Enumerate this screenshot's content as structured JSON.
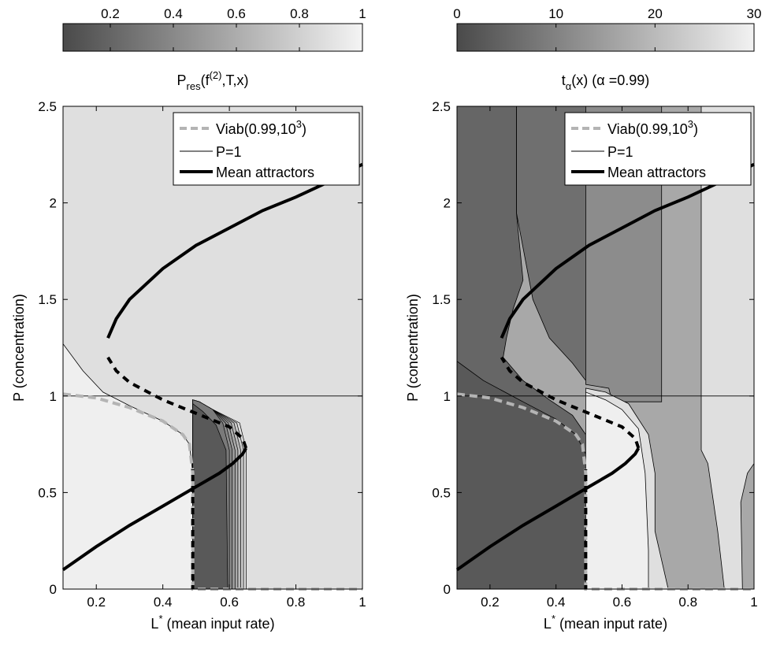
{
  "chart_data": [
    {
      "type": "contour",
      "colorbar": {
        "ticks": [
          "0.2",
          "0.4",
          "0.6",
          "0.8",
          "1"
        ],
        "range": [
          0.05,
          1.0
        ],
        "label_main": "P",
        "label_sub": "res",
        "label_mid": "(f",
        "label_sup": "(2)",
        "label_end": ",T,x)"
      },
      "xlabel_main": "L",
      "xlabel_sup": "*",
      "xlabel_end": " (mean input rate)",
      "ylabel": "P (concentration)",
      "xlim": [
        0.1,
        1.0
      ],
      "ylim": [
        0,
        2.5
      ],
      "xticks": [
        "0.2",
        "0.4",
        "0.6",
        "0.8",
        "1"
      ],
      "yticks": [
        "0",
        "0.5",
        "1",
        "1.5",
        "2",
        "2.5"
      ],
      "legend": {
        "position": "top-right",
        "viab_main": "Viab(0.99,10",
        "viab_sup": "3",
        "viab_end": ")",
        "p1": "P=1",
        "mean": "Mean attractors"
      },
      "regions": [
        {
          "name": "upper",
          "level": 0.9,
          "color": "#dfdfdf"
        },
        {
          "name": "lower-left",
          "level": 1.0,
          "color": "#efefef"
        },
        {
          "name": "lower-middle",
          "level": 0.1,
          "color": "#595959"
        },
        {
          "name": "lower-right",
          "level": 0.9,
          "color": "#dfdfdf"
        }
      ],
      "mean_attractors": {
        "lower": [
          [
            0.1,
            0.1
          ],
          [
            0.2,
            0.22
          ],
          [
            0.3,
            0.33
          ],
          [
            0.4,
            0.43
          ],
          [
            0.5,
            0.53
          ],
          [
            0.57,
            0.6
          ],
          [
            0.61,
            0.65
          ],
          [
            0.64,
            0.7
          ],
          [
            0.65,
            0.73
          ]
        ],
        "middle": [
          [
            0.65,
            0.73
          ],
          [
            0.64,
            0.78
          ],
          [
            0.6,
            0.84
          ],
          [
            0.5,
            0.91
          ],
          [
            0.4,
            0.98
          ],
          [
            0.3,
            1.07
          ],
          [
            0.26,
            1.13
          ],
          [
            0.235,
            1.2
          ]
        ],
        "upper": [
          [
            0.235,
            1.3
          ],
          [
            0.26,
            1.4
          ],
          [
            0.3,
            1.5
          ],
          [
            0.4,
            1.66
          ],
          [
            0.5,
            1.78
          ],
          [
            0.6,
            1.87
          ],
          [
            0.7,
            1.96
          ],
          [
            0.8,
            2.03
          ],
          [
            0.9,
            2.11
          ],
          [
            1.0,
            2.2
          ]
        ]
      },
      "viab_boundary": [
        [
          0.1,
          1.01
        ],
        [
          0.2,
          0.99
        ],
        [
          0.3,
          0.94
        ],
        [
          0.4,
          0.87
        ],
        [
          0.46,
          0.8
        ],
        [
          0.48,
          0.75
        ],
        [
          0.49,
          0.6
        ],
        [
          0.49,
          0.0
        ],
        [
          1.0,
          0.0
        ]
      ]
    },
    {
      "type": "contour",
      "colorbar": {
        "ticks": [
          "0",
          "10",
          "20",
          "30"
        ],
        "range": [
          0,
          30
        ],
        "label_main": "t",
        "label_sub": "α",
        "label_end": "(x) (α =0.99)"
      },
      "xlabel_main": "L",
      "xlabel_sup": "*",
      "xlabel_end": " (mean input rate)",
      "ylabel": "P (concentration)",
      "xlim": [
        0.1,
        1.0
      ],
      "ylim": [
        0,
        2.5
      ],
      "xticks": [
        "0.2",
        "0.4",
        "0.6",
        "0.8",
        "1"
      ],
      "yticks": [
        "0",
        "0.5",
        "1",
        "1.5",
        "2",
        "2.5"
      ],
      "legend": {
        "position": "top-right",
        "viab_main": "Viab(0.99,10",
        "viab_sup": "3",
        "viab_end": ")",
        "p1": "P=1",
        "mean": "Mean attractors"
      },
      "regions": [
        {
          "name": "bottom-left",
          "level": 5,
          "color": "#595959"
        },
        {
          "name": "left-column",
          "level": 8,
          "color": "#6f6f6f"
        },
        {
          "name": "middle-column",
          "level": 14,
          "color": "#8c8c8c"
        },
        {
          "name": "right-column",
          "level": 20,
          "color": "#a8a8a8"
        },
        {
          "name": "bright-pocket",
          "level": 29,
          "color": "#efefef"
        },
        {
          "name": "pocket-rim",
          "level": 25,
          "color": "#dfdfdf"
        }
      ],
      "mean_attractors": {
        "lower": [
          [
            0.1,
            0.1
          ],
          [
            0.2,
            0.22
          ],
          [
            0.3,
            0.33
          ],
          [
            0.4,
            0.43
          ],
          [
            0.5,
            0.53
          ],
          [
            0.57,
            0.6
          ],
          [
            0.61,
            0.65
          ],
          [
            0.64,
            0.7
          ],
          [
            0.65,
            0.73
          ]
        ],
        "middle": [
          [
            0.65,
            0.73
          ],
          [
            0.64,
            0.78
          ],
          [
            0.6,
            0.84
          ],
          [
            0.5,
            0.91
          ],
          [
            0.4,
            0.98
          ],
          [
            0.3,
            1.07
          ],
          [
            0.26,
            1.13
          ],
          [
            0.235,
            1.2
          ]
        ],
        "upper": [
          [
            0.235,
            1.3
          ],
          [
            0.26,
            1.4
          ],
          [
            0.3,
            1.5
          ],
          [
            0.4,
            1.66
          ],
          [
            0.5,
            1.78
          ],
          [
            0.6,
            1.87
          ],
          [
            0.7,
            1.96
          ],
          [
            0.8,
            2.03
          ],
          [
            0.9,
            2.11
          ],
          [
            1.0,
            2.2
          ]
        ]
      },
      "viab_boundary": [
        [
          0.1,
          1.01
        ],
        [
          0.2,
          0.99
        ],
        [
          0.3,
          0.94
        ],
        [
          0.4,
          0.87
        ],
        [
          0.46,
          0.8
        ],
        [
          0.48,
          0.75
        ],
        [
          0.49,
          0.6
        ],
        [
          0.49,
          0.0
        ],
        [
          1.0,
          0.0
        ]
      ]
    }
  ]
}
